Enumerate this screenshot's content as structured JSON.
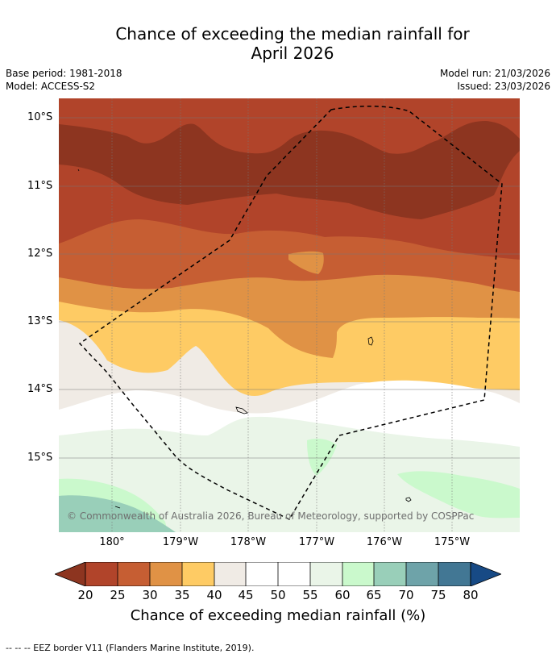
{
  "title_line1": "Chance of exceeding the median rainfall for",
  "title_line2": "April 2026",
  "base_period": "Base period: 1981-2018",
  "model": "Model: ACCESS-S2",
  "model_run": "Model run: 21/03/2026",
  "issued": "Issued: 23/03/2026",
  "lat_labels": [
    "10°S",
    "11°S",
    "12°S",
    "13°S",
    "14°S",
    "15°S"
  ],
  "lon_labels": [
    "180°",
    "179°W",
    "178°W",
    "177°W",
    "176°W",
    "175°W"
  ],
  "copyright": "© Commonwealth of Australia 2026, Bureau of Meteorology, supported by COSPPac",
  "colorbar": {
    "ticks": [
      "20",
      "25",
      "30",
      "35",
      "40",
      "45",
      "50",
      "55",
      "60",
      "65",
      "70",
      "75",
      "80"
    ],
    "colors": {
      "under_20": "#8d3520",
      "20_25": "#b1442a",
      "25_30": "#c65e33",
      "30_35": "#e09245",
      "35_40": "#fecb64",
      "40_45": "#f0ebe5",
      "45_50": "#ffffff",
      "50_55": "#ffffff",
      "55_60": "#eaf5e8",
      "60_65": "#caf9cc",
      "65_70": "#99cfb9",
      "70_75": "#6ea3a9",
      "75_80": "#427794",
      "over_80": "#174a85"
    },
    "title": "Chance of exceeding median rainfall (%)"
  },
  "footer": "--  --  -- EEZ border V11 (Flanders Marine Institute, 2019)."
}
